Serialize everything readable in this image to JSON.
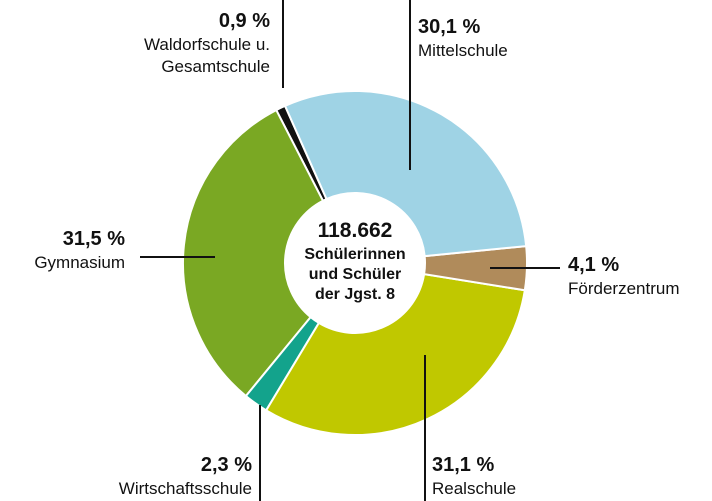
{
  "chart_data": {
    "type": "pie",
    "categories": [
      "Mittelschule",
      "Förderzentrum",
      "Realschule",
      "Wirtschaftsschule",
      "Gymnasium",
      "Waldorfschule u. Gesamtschule"
    ],
    "values": [
      30.1,
      4.1,
      31.1,
      2.3,
      31.5,
      0.9
    ],
    "value_labels": [
      "30,1 %",
      "4,1 %",
      "31,1 %",
      "2,3 %",
      "31,5 %",
      "0,9 %"
    ],
    "colors": [
      "#9fd3e5",
      "#b08b5b",
      "#c0c800",
      "#13a38c",
      "#7aa823",
      "#111111"
    ],
    "center_label": [
      "118.662",
      "Schülerinnen",
      "und Schüler",
      "der Jgst. 8"
    ]
  }
}
